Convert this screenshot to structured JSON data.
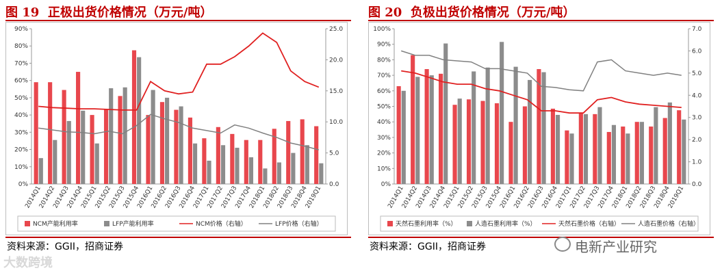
{
  "chart_data": [
    {
      "type": "bar",
      "figure_label": "图 19",
      "title": "正极出货价格情况（万元/吨）",
      "source": "资料来源：GGII，招商证券",
      "categories": [
        "2014Q1",
        "2014Q2",
        "2014Q3",
        "2014Q4",
        "2015Q1",
        "2015Q2",
        "2015Q3",
        "2015Q4",
        "2016Q1",
        "2016Q2",
        "2016Q3",
        "2016Q4",
        "2017Q1",
        "2017Q2",
        "2017Q3",
        "2017Q4",
        "2018Q1",
        "2018Q2",
        "2018Q3",
        "2018Q4",
        "2019Q1"
      ],
      "left_ticks": [
        "0%",
        "10%",
        "20%",
        "30%",
        "40%",
        "50%",
        "60%",
        "70%",
        "80%",
        "90%"
      ],
      "right_ticks": [
        "0.0",
        "5.0",
        "10.0",
        "15.0",
        "20.0",
        "25.0"
      ],
      "ylim_left": [
        0,
        0.9
      ],
      "ylim_right": [
        0,
        25
      ],
      "series": [
        {
          "name": "NCM产能利用率",
          "kind": "bar",
          "axis": "left",
          "color": "#e8474d",
          "values": [
            0.59,
            0.59,
            0.545,
            0.65,
            0.4,
            0.435,
            0.51,
            0.775,
            0.4,
            0.475,
            0.43,
            0.385,
            0.265,
            0.33,
            0.29,
            0.255,
            0.255,
            0.32,
            0.365,
            0.375,
            0.335
          ]
        },
        {
          "name": "LFP产能利用率",
          "kind": "bar",
          "axis": "left",
          "color": "#8c8c8c",
          "values": [
            0.15,
            0.255,
            0.365,
            0.425,
            0.235,
            0.555,
            0.56,
            0.735,
            0.545,
            0.5,
            0.45,
            0.235,
            0.135,
            0.225,
            0.21,
            0.155,
            0.09,
            0.125,
            0.18,
            0.225,
            0.12
          ]
        },
        {
          "name": "NCM价格（右轴）",
          "kind": "line",
          "axis": "right",
          "color": "#e02020",
          "values": [
            12.5,
            12.3,
            12.2,
            12.1,
            12.1,
            12.0,
            11.9,
            11.9,
            16.5,
            15.0,
            14.5,
            14.8,
            19.3,
            19.3,
            20.5,
            22.2,
            24.3,
            22.8,
            18.2,
            16.5,
            15.6
          ]
        },
        {
          "name": "LFP价格（右轴）",
          "kind": "line",
          "axis": "right",
          "color": "#808080",
          "values": [
            9.0,
            8.7,
            8.4,
            8.3,
            8.1,
            8.5,
            8.1,
            9.4,
            11.2,
            10.5,
            9.9,
            9.0,
            8.6,
            8.2,
            9.5,
            9.0,
            8.2,
            7.5,
            6.6,
            6.1,
            5.5
          ]
        }
      ]
    },
    {
      "type": "bar",
      "figure_label": "图 20",
      "title": "负极出货价格情况（万元/吨）",
      "source": "资料来源：GGII，招商证券",
      "categories": [
        "2014Q1",
        "2014Q2",
        "2014Q3",
        "2014Q4",
        "2015Q1",
        "2015Q2",
        "2015Q3",
        "2015Q4",
        "2016Q1",
        "2016Q2",
        "2016Q3",
        "2016Q4",
        "2017Q1",
        "2017Q2",
        "2017Q3",
        "2017Q4",
        "2018Q1",
        "2018Q2",
        "2018Q3",
        "2018Q4",
        "2019Q1"
      ],
      "left_ticks": [
        "0%",
        "10%",
        "20%",
        "30%",
        "40%",
        "50%",
        "60%",
        "70%",
        "80%",
        "90%",
        "100%"
      ],
      "right_ticks": [
        "0.0",
        "1.0",
        "2.0",
        "3.0",
        "4.0",
        "5.0",
        "6.0",
        "7.0"
      ],
      "ylim_left": [
        0,
        1.0
      ],
      "ylim_right": [
        0,
        7
      ],
      "series": [
        {
          "name": "天然石墨利用率（%）",
          "kind": "bar",
          "axis": "left",
          "color": "#e8474d",
          "values": [
            0.63,
            0.83,
            0.74,
            0.71,
            0.51,
            0.545,
            0.535,
            0.52,
            0.4,
            0.5,
            0.74,
            0.485,
            0.345,
            0.46,
            0.45,
            0.335,
            0.37,
            0.4,
            0.37,
            0.425,
            0.475
          ]
        },
        {
          "name": "人造石墨利用率（%）",
          "kind": "bar",
          "axis": "left",
          "color": "#8c8c8c",
          "values": [
            0.6,
            0.69,
            0.7,
            0.905,
            0.55,
            0.725,
            0.75,
            0.915,
            0.755,
            0.67,
            0.72,
            0.445,
            0.325,
            0.45,
            0.495,
            0.38,
            0.325,
            0.4,
            0.495,
            0.525,
            0.415
          ]
        },
        {
          "name": "天然石墨价格（右轴）",
          "kind": "line",
          "axis": "right",
          "color": "#e02020",
          "values": [
            5.1,
            5.0,
            4.8,
            4.6,
            4.5,
            4.5,
            4.3,
            4.2,
            4.0,
            3.8,
            3.3,
            3.3,
            3.2,
            3.2,
            3.8,
            3.9,
            3.7,
            3.6,
            3.55,
            3.5,
            3.45
          ]
        },
        {
          "name": "人造石墨价格（右轴）",
          "kind": "line",
          "axis": "right",
          "color": "#808080",
          "values": [
            6.0,
            5.8,
            5.8,
            5.6,
            5.55,
            5.5,
            5.2,
            5.2,
            5.1,
            5.0,
            4.4,
            4.35,
            4.25,
            4.2,
            5.5,
            5.6,
            5.1,
            5.0,
            4.9,
            5.0,
            4.9
          ]
        }
      ]
    }
  ],
  "watermark": {
    "left": "大数跨境",
    "right": "电新产业研究"
  }
}
